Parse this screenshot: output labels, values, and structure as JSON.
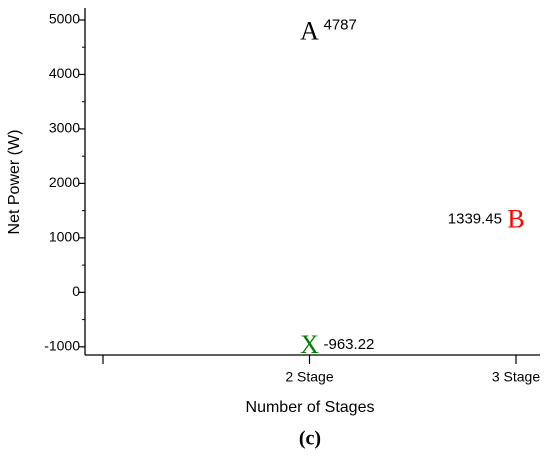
{
  "chart_data": {
    "type": "scatter",
    "x_label": "Number of Stages",
    "y_label": "Net Power (W)",
    "caption": "(c)",
    "categories": [
      null,
      "2 Stage",
      "3 Stage"
    ],
    "series": [
      {
        "name": "A",
        "color": "#000000",
        "values": [
          null,
          4787,
          null
        ]
      },
      {
        "name": "B",
        "color": "#ff0000",
        "values": [
          null,
          null,
          1339.45
        ]
      },
      {
        "name": "X",
        "color": "#008000",
        "values": [
          null,
          -963.22,
          null
        ]
      }
    ],
    "ylim": [
      -1150,
      5220
    ],
    "yticks": [
      -1000,
      0,
      1000,
      2000,
      3000,
      4000,
      5000
    ]
  }
}
